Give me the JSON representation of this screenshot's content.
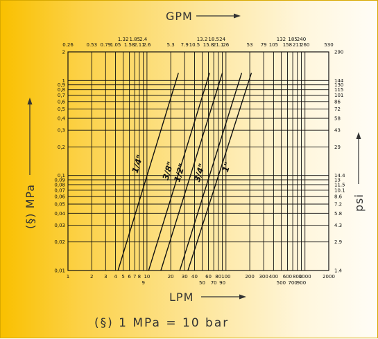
{
  "chart_data": {
    "type": "line",
    "title": "GPM",
    "xlabel": "LPM",
    "ylabel_left": "(§) MPa",
    "ylabel_right": "psi",
    "footnote": "(§)  1 MPa = 10 bar",
    "x_scale": "log",
    "y_scale": "log",
    "xlim": [
      1,
      2000
    ],
    "ylim": [
      0.01,
      2
    ],
    "grid": true,
    "x_ticks": [
      {
        "v": 1,
        "t": "1"
      },
      {
        "v": 2,
        "t": "2"
      },
      {
        "v": 3,
        "t": "3"
      },
      {
        "v": 4,
        "t": "4"
      },
      {
        "v": 5,
        "t": "5"
      },
      {
        "v": 6,
        "t": "6"
      },
      {
        "v": 7,
        "t": "7"
      },
      {
        "v": 8,
        "t": "8"
      },
      {
        "v": 9,
        "t": "9",
        "low": true
      },
      {
        "v": 10,
        "t": "10"
      },
      {
        "v": 20,
        "t": "20"
      },
      {
        "v": 30,
        "t": "30"
      },
      {
        "v": 40,
        "t": "40"
      },
      {
        "v": 50,
        "t": "50",
        "low": true
      },
      {
        "v": 60,
        "t": "60"
      },
      {
        "v": 70,
        "t": "70",
        "low": true
      },
      {
        "v": 80,
        "t": "80"
      },
      {
        "v": 90,
        "t": "90",
        "low": true
      },
      {
        "v": 100,
        "t": "100"
      },
      {
        "v": 200,
        "t": "200"
      },
      {
        "v": 300,
        "t": "300"
      },
      {
        "v": 400,
        "t": "400"
      },
      {
        "v": 500,
        "t": "500",
        "low": true
      },
      {
        "v": 600,
        "t": "600"
      },
      {
        "v": 700,
        "t": "700",
        "low": true
      },
      {
        "v": 800,
        "t": "800"
      },
      {
        "v": 900,
        "t": "900",
        "low": true
      },
      {
        "v": 1000,
        "t": "1000"
      },
      {
        "v": 2000,
        "t": "2000"
      }
    ],
    "gpm_ticks": [
      {
        "v": 1,
        "t": "0.26"
      },
      {
        "v": 2,
        "t": "0.53"
      },
      {
        "v": 3,
        "t": "0.79"
      },
      {
        "v": 4,
        "t": "1.05"
      },
      {
        "v": 5,
        "t": "1.32",
        "high": true
      },
      {
        "v": 6,
        "t": "1.58"
      },
      {
        "v": 7,
        "t": "1.85",
        "high": true
      },
      {
        "v": 8,
        "t": "2.11"
      },
      {
        "v": 9,
        "t": "2.4",
        "high": true
      },
      {
        "v": 10,
        "t": "2.6"
      },
      {
        "v": 20,
        "t": "5.3"
      },
      {
        "v": 30,
        "t": "7.9"
      },
      {
        "v": 40,
        "t": "10.5"
      },
      {
        "v": 50,
        "t": "13.2",
        "high": true
      },
      {
        "v": 60,
        "t": "15.8"
      },
      {
        "v": 70,
        "t": "18.5",
        "high": true
      },
      {
        "v": 80,
        "t": "21.1"
      },
      {
        "v": 90,
        "t": "24",
        "high": true
      },
      {
        "v": 100,
        "t": "26"
      },
      {
        "v": 200,
        "t": "53"
      },
      {
        "v": 300,
        "t": "79"
      },
      {
        "v": 400,
        "t": "105"
      },
      {
        "v": 500,
        "t": "132",
        "high": true
      },
      {
        "v": 600,
        "t": "158"
      },
      {
        "v": 700,
        "t": "185",
        "high": true
      },
      {
        "v": 800,
        "t": "211"
      },
      {
        "v": 900,
        "t": "240",
        "high": true
      },
      {
        "v": 1000,
        "t": "260"
      },
      {
        "v": 2000,
        "t": "530"
      }
    ],
    "mpa_ticks": [
      {
        "v": 2,
        "t": "2"
      },
      {
        "v": 1,
        "t": "1"
      },
      {
        "v": 0.9,
        "t": "0,9"
      },
      {
        "v": 0.8,
        "t": "0,8"
      },
      {
        "v": 0.7,
        "t": "0,7"
      },
      {
        "v": 0.6,
        "t": "0,6"
      },
      {
        "v": 0.5,
        "t": "0,5"
      },
      {
        "v": 0.4,
        "t": "0,4"
      },
      {
        "v": 0.3,
        "t": "0,3"
      },
      {
        "v": 0.2,
        "t": "0,2"
      },
      {
        "v": 0.1,
        "t": "0,1"
      },
      {
        "v": 0.09,
        "t": "0,09"
      },
      {
        "v": 0.08,
        "t": "0,08"
      },
      {
        "v": 0.07,
        "t": "0,07"
      },
      {
        "v": 0.06,
        "t": "0,06"
      },
      {
        "v": 0.05,
        "t": "0,05"
      },
      {
        "v": 0.04,
        "t": "0,04"
      },
      {
        "v": 0.03,
        "t": "0,03"
      },
      {
        "v": 0.02,
        "t": "0,02"
      },
      {
        "v": 0.01,
        "t": "0,01"
      }
    ],
    "psi_ticks": [
      {
        "v": 2,
        "t": "290"
      },
      {
        "v": 1,
        "t": "144"
      },
      {
        "v": 0.9,
        "t": "130"
      },
      {
        "v": 0.8,
        "t": "115"
      },
      {
        "v": 0.7,
        "t": "101"
      },
      {
        "v": 0.6,
        "t": "86"
      },
      {
        "v": 0.5,
        "t": "72"
      },
      {
        "v": 0.4,
        "t": "58"
      },
      {
        "v": 0.3,
        "t": "43"
      },
      {
        "v": 0.2,
        "t": "29"
      },
      {
        "v": 0.1,
        "t": "14.4"
      },
      {
        "v": 0.09,
        "t": "13"
      },
      {
        "v": 0.08,
        "t": "11.5"
      },
      {
        "v": 0.07,
        "t": "10.1"
      },
      {
        "v": 0.06,
        "t": "8.6"
      },
      {
        "v": 0.05,
        "t": "7.2"
      },
      {
        "v": 0.04,
        "t": "5.8"
      },
      {
        "v": 0.03,
        "t": "4.3"
      },
      {
        "v": 0.02,
        "t": "2.9"
      },
      {
        "v": 0.01,
        "t": "1.4"
      }
    ],
    "series": [
      {
        "name": "1/4\"",
        "x": [
          4.3,
          25
        ],
        "y": [
          0.01,
          1.2
        ],
        "label_at": [
          8.2,
          0.13
        ]
      },
      {
        "name": "3/8\"",
        "x": [
          10.5,
          62
        ],
        "y": [
          0.01,
          1.2
        ],
        "label_at": [
          20,
          0.11
        ]
      },
      {
        "name": "1/2\"",
        "x": [
          15,
          90
        ],
        "y": [
          0.01,
          1.2
        ],
        "label_at": [
          28,
          0.105
        ]
      },
      {
        "name": "3/4\"",
        "x": [
          26,
          158
        ],
        "y": [
          0.01,
          1.2
        ],
        "label_at": [
          50,
          0.105
        ]
      },
      {
        "name": "1\"",
        "x": [
          33,
          210
        ],
        "y": [
          0.01,
          1.2
        ],
        "label_at": [
          110,
          0.12
        ]
      }
    ]
  }
}
